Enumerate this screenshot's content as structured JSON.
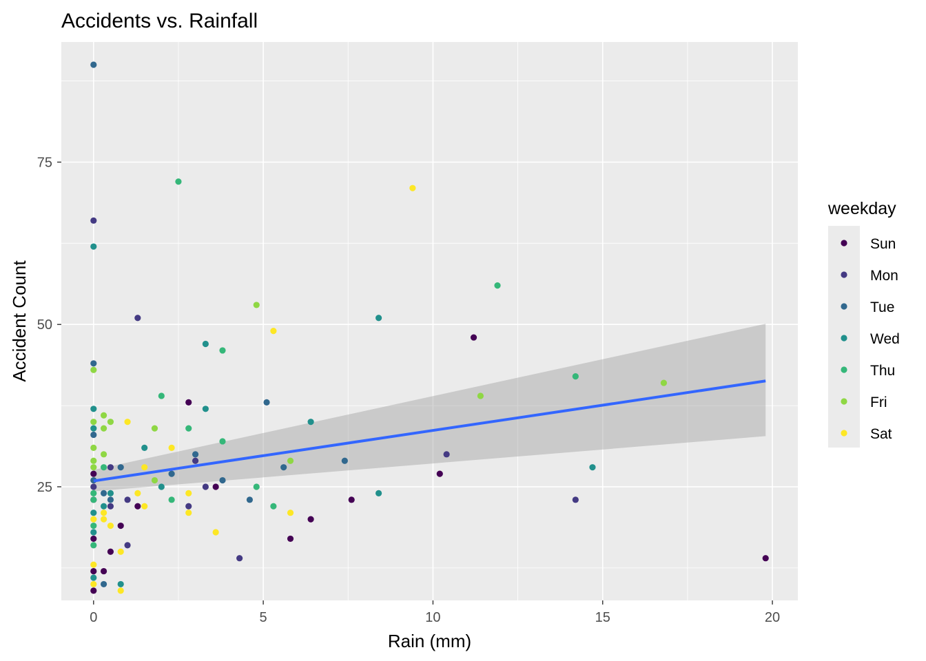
{
  "chart_data": {
    "type": "scatter",
    "title": "Accidents vs. Rainfall",
    "xlabel": "Rain (mm)",
    "ylabel": "Accident Count",
    "xlim": [
      -0.95,
      20.75
    ],
    "ylim": [
      7.5,
      93.5
    ],
    "x_ticks": [
      0,
      5,
      10,
      15,
      20
    ],
    "y_ticks": [
      25,
      50,
      75
    ],
    "grid": true,
    "legend": {
      "title": "weekday",
      "position": "right",
      "entries": [
        {
          "label": "Sun",
          "color": "#440154"
        },
        {
          "label": "Mon",
          "color": "#443A83"
        },
        {
          "label": "Tue",
          "color": "#31688E"
        },
        {
          "label": "Wed",
          "color": "#21908C"
        },
        {
          "label": "Thu",
          "color": "#35B779"
        },
        {
          "label": "Fri",
          "color": "#8FD744"
        },
        {
          "label": "Sat",
          "color": "#FDE725"
        }
      ]
    },
    "series": [
      {
        "name": "Sun",
        "points": [
          [
            0,
            9
          ],
          [
            0,
            12
          ],
          [
            0,
            17
          ],
          [
            0,
            23
          ],
          [
            0,
            27
          ],
          [
            0.3,
            12
          ],
          [
            0.5,
            15
          ],
          [
            0.8,
            19
          ],
          [
            1.3,
            22
          ],
          [
            2.8,
            38
          ],
          [
            3.6,
            25
          ],
          [
            5.8,
            17
          ],
          [
            6.4,
            20
          ],
          [
            7.6,
            23
          ],
          [
            10.2,
            27
          ],
          [
            11.2,
            48
          ],
          [
            19.8,
            14
          ]
        ]
      },
      {
        "name": "Mon",
        "points": [
          [
            0,
            66
          ],
          [
            0,
            25
          ],
          [
            0.5,
            28
          ],
          [
            0.5,
            22
          ],
          [
            1,
            16
          ],
          [
            1,
            23
          ],
          [
            1.3,
            51
          ],
          [
            2.8,
            22
          ],
          [
            3,
            29
          ],
          [
            3.3,
            25
          ],
          [
            4.3,
            14
          ],
          [
            10.4,
            30
          ],
          [
            14.2,
            23
          ]
        ]
      },
      {
        "name": "Tue",
        "points": [
          [
            0,
            90
          ],
          [
            0,
            44
          ],
          [
            0,
            33
          ],
          [
            0,
            26
          ],
          [
            0.3,
            24
          ],
          [
            0.3,
            10
          ],
          [
            0.5,
            23
          ],
          [
            2.3,
            27
          ],
          [
            3,
            30
          ],
          [
            3.8,
            26
          ],
          [
            4.6,
            23
          ],
          [
            5.1,
            38
          ],
          [
            5.6,
            28
          ],
          [
            7.4,
            29
          ],
          [
            0.8,
            28
          ]
        ]
      },
      {
        "name": "Wed",
        "points": [
          [
            0,
            62
          ],
          [
            0,
            37
          ],
          [
            0,
            34
          ],
          [
            0,
            21
          ],
          [
            0,
            18
          ],
          [
            0,
            11
          ],
          [
            0.3,
            22
          ],
          [
            0.5,
            24
          ],
          [
            0.8,
            10
          ],
          [
            1.5,
            31
          ],
          [
            2,
            25
          ],
          [
            3.3,
            47
          ],
          [
            3.3,
            37
          ],
          [
            6.4,
            35
          ],
          [
            8.4,
            51
          ],
          [
            8.4,
            24
          ],
          [
            14.7,
            28
          ]
        ]
      },
      {
        "name": "Thu",
        "points": [
          [
            0,
            19
          ],
          [
            0,
            16
          ],
          [
            0,
            23
          ],
          [
            0,
            24
          ],
          [
            0.3,
            28
          ],
          [
            2,
            39
          ],
          [
            2.3,
            23
          ],
          [
            2.5,
            72
          ],
          [
            2.8,
            34
          ],
          [
            3.8,
            46
          ],
          [
            3.8,
            32
          ],
          [
            4.8,
            25
          ],
          [
            5.3,
            22
          ],
          [
            11.9,
            56
          ],
          [
            14.2,
            42
          ]
        ]
      },
      {
        "name": "Fri",
        "points": [
          [
            0,
            43
          ],
          [
            0,
            35
          ],
          [
            0,
            31
          ],
          [
            0,
            29
          ],
          [
            0,
            28
          ],
          [
            0.3,
            36
          ],
          [
            0.3,
            34
          ],
          [
            0.3,
            30
          ],
          [
            0.5,
            35
          ],
          [
            1.8,
            34
          ],
          [
            1.8,
            26
          ],
          [
            4.8,
            53
          ],
          [
            5.8,
            29
          ],
          [
            11.4,
            39
          ],
          [
            16.8,
            41
          ]
        ]
      },
      {
        "name": "Sat",
        "points": [
          [
            0,
            13
          ],
          [
            0,
            10
          ],
          [
            0,
            20
          ],
          [
            0.3,
            21
          ],
          [
            0.3,
            20
          ],
          [
            0.5,
            19
          ],
          [
            0.8,
            15
          ],
          [
            0.8,
            9
          ],
          [
            1,
            35
          ],
          [
            1.3,
            24
          ],
          [
            1.5,
            28
          ],
          [
            1.5,
            22
          ],
          [
            2.3,
            31
          ],
          [
            2.8,
            24
          ],
          [
            2.8,
            21
          ],
          [
            3.6,
            18
          ],
          [
            5.3,
            49
          ],
          [
            5.8,
            21
          ],
          [
            9.4,
            71
          ]
        ]
      }
    ],
    "trend_line": {
      "method": "lm",
      "color": "#3366FF",
      "points": [
        [
          0,
          25.9
        ],
        [
          19.8,
          41.3
        ]
      ],
      "ci_upper": [
        [
          0,
          27.6
        ],
        [
          19.8,
          50.1
        ]
      ],
      "ci_lower": [
        [
          0,
          24.3
        ],
        [
          19.8,
          32.8
        ]
      ],
      "ci_color": "#999999"
    },
    "background": {
      "panel": "#EBEBEB",
      "grid": "#FFFFFF"
    }
  }
}
